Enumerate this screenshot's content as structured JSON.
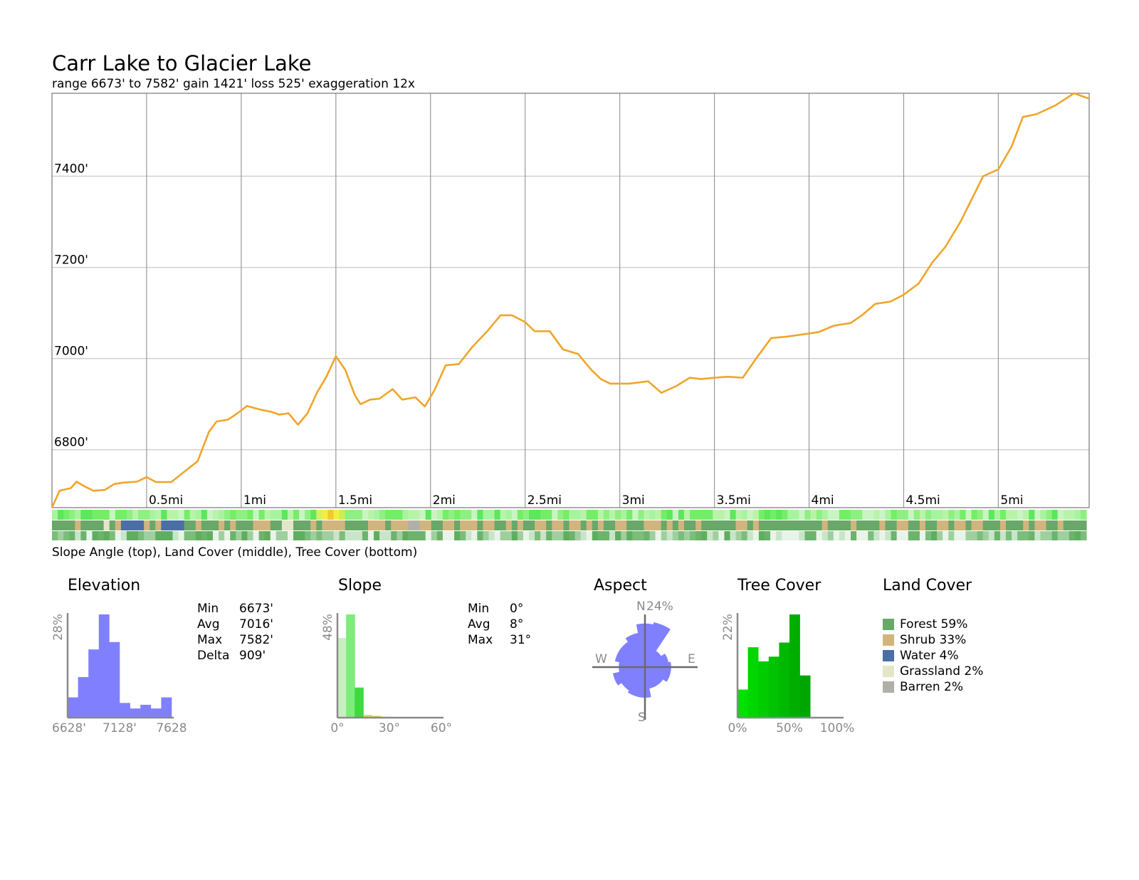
{
  "title": "Carr Lake to Glacier Lake",
  "subtitle": "range 6673' to 7582'  gain 1421'  loss 525'  exaggeration 12x",
  "strip_caption": "Slope Angle (top), Land Cover (middle), Tree Cover (bottom)",
  "colors": {
    "profile": "#f0a52a",
    "grid": "#d0d0d0",
    "vgrid": "#999999",
    "elevation_hist": "#8080ff",
    "aspect_rose": "#8080ff",
    "axis_label": "#8a8a8a"
  },
  "chart_data": [
    {
      "name": "elevation-profile",
      "type": "line",
      "x_unit": "mi",
      "y_unit": "ft",
      "xlim": [
        0,
        5.48
      ],
      "ylim": [
        6673,
        7582
      ],
      "y_ticks": [
        6800,
        7000,
        7200,
        7400
      ],
      "y_tick_labels": [
        "6800'",
        "7000'",
        "7200'",
        "7400'"
      ],
      "x_ticks": [
        0.5,
        1,
        1.5,
        2,
        2.5,
        3,
        3.5,
        4,
        4.5,
        5
      ],
      "x_tick_labels": [
        "0.5mi",
        "1mi",
        "1.5mi",
        "2mi",
        "2.5mi",
        "3mi",
        "3.5mi",
        "4mi",
        "4.5mi",
        "5mi"
      ],
      "grid": true,
      "points": [
        [
          0,
          6673
        ],
        [
          0.04,
          6710
        ],
        [
          0.1,
          6716
        ],
        [
          0.13,
          6730
        ],
        [
          0.17,
          6720
        ],
        [
          0.22,
          6710
        ],
        [
          0.28,
          6712
        ],
        [
          0.33,
          6725
        ],
        [
          0.38,
          6728
        ],
        [
          0.45,
          6730
        ],
        [
          0.5,
          6740
        ],
        [
          0.55,
          6729
        ],
        [
          0.63,
          6729
        ],
        [
          0.7,
          6752
        ],
        [
          0.77,
          6775
        ],
        [
          0.83,
          6840
        ],
        [
          0.87,
          6862
        ],
        [
          0.93,
          6866
        ],
        [
          0.98,
          6880
        ],
        [
          1.03,
          6896
        ],
        [
          1.1,
          6888
        ],
        [
          1.16,
          6883
        ],
        [
          1.2,
          6877
        ],
        [
          1.25,
          6880
        ],
        [
          1.3,
          6855
        ],
        [
          1.35,
          6880
        ],
        [
          1.4,
          6925
        ],
        [
          1.45,
          6960
        ],
        [
          1.5,
          7005
        ],
        [
          1.55,
          6975
        ],
        [
          1.6,
          6920
        ],
        [
          1.63,
          6900
        ],
        [
          1.68,
          6910
        ],
        [
          1.73,
          6912
        ],
        [
          1.8,
          6933
        ],
        [
          1.85,
          6910
        ],
        [
          1.92,
          6915
        ],
        [
          1.97,
          6895
        ],
        [
          2.02,
          6930
        ],
        [
          2.08,
          6985
        ],
        [
          2.15,
          6988
        ],
        [
          2.22,
          7025
        ],
        [
          2.3,
          7060
        ],
        [
          2.37,
          7095
        ],
        [
          2.43,
          7095
        ],
        [
          2.5,
          7080
        ],
        [
          2.55,
          7060
        ],
        [
          2.63,
          7060
        ],
        [
          2.7,
          7020
        ],
        [
          2.78,
          7010
        ],
        [
          2.85,
          6975
        ],
        [
          2.9,
          6955
        ],
        [
          2.95,
          6945
        ],
        [
          3.05,
          6945
        ],
        [
          3.15,
          6950
        ],
        [
          3.22,
          6925
        ],
        [
          3.3,
          6940
        ],
        [
          3.37,
          6958
        ],
        [
          3.43,
          6955
        ],
        [
          3.5,
          6958
        ],
        [
          3.57,
          6960
        ],
        [
          3.65,
          6958
        ],
        [
          3.72,
          7000
        ],
        [
          3.8,
          7045
        ],
        [
          3.88,
          7048
        ],
        [
          3.95,
          7052
        ],
        [
          4.05,
          7058
        ],
        [
          4.13,
          7072
        ],
        [
          4.22,
          7078
        ],
        [
          4.28,
          7095
        ],
        [
          4.35,
          7120
        ],
        [
          4.43,
          7125
        ],
        [
          4.5,
          7140
        ],
        [
          4.58,
          7165
        ],
        [
          4.65,
          7210
        ],
        [
          4.72,
          7245
        ],
        [
          4.8,
          7300
        ],
        [
          4.86,
          7350
        ],
        [
          4.92,
          7400
        ],
        [
          5.0,
          7415
        ],
        [
          5.07,
          7465
        ],
        [
          5.13,
          7530
        ],
        [
          5.2,
          7536
        ],
        [
          5.3,
          7555
        ],
        [
          5.4,
          7582
        ],
        [
          5.48,
          7570
        ]
      ]
    },
    {
      "name": "elevation-histogram",
      "type": "bar",
      "title": "Elevation",
      "x_unit": "ft",
      "bin_edges": [
        6628,
        6728,
        6828,
        6928,
        7028,
        7128,
        7228,
        7328,
        7428,
        7528,
        7628
      ],
      "values": [
        5.5,
        11,
        18.5,
        28,
        20.5,
        4,
        2.5,
        3.5,
        2.5,
        5.5
      ],
      "ylim": [
        0,
        28
      ],
      "y_label": "28%",
      "x_tick_labels": [
        "6628'",
        "7128'",
        "7628"
      ],
      "stats": [
        {
          "label": "Min",
          "value": "6673'"
        },
        {
          "label": "Avg",
          "value": "7016'"
        },
        {
          "label": "Max",
          "value": "7582'"
        },
        {
          "label": "Delta",
          "value": "909'"
        }
      ]
    },
    {
      "name": "slope-histogram",
      "type": "bar",
      "title": "Slope",
      "x_unit": "degrees",
      "bin_edges": [
        0,
        5,
        10,
        15,
        20,
        25,
        30
      ],
      "values": [
        37,
        48,
        14,
        1.3,
        0.8,
        0.4
      ],
      "colors": [
        "#c6f0c0",
        "#7ded7a",
        "#3ed93e",
        "#c8e44a",
        "#e8c830",
        "#f0a030"
      ],
      "ylim": [
        0,
        48
      ],
      "y_label": "48%",
      "x_tick_labels": [
        "0°",
        "30°",
        "60°"
      ],
      "stats": [
        {
          "label": "Min",
          "value": "0°"
        },
        {
          "label": "Avg",
          "value": "8°"
        },
        {
          "label": "Max",
          "value": "31°"
        }
      ]
    },
    {
      "name": "aspect-rose",
      "type": "rose",
      "title": "Aspect",
      "max_label": "24%",
      "max_percent": 24,
      "direction_labels": [
        "N",
        "E",
        "S",
        "W"
      ],
      "sectors_deg": [
        0,
        22.5,
        45,
        67.5,
        90,
        112.5,
        135,
        157.5,
        180,
        202.5,
        225,
        247.5,
        270,
        292.5,
        315,
        337.5
      ],
      "values": [
        20,
        21,
        9,
        11,
        12,
        12,
        10,
        10,
        14,
        14,
        13,
        15,
        12,
        14,
        14,
        16
      ]
    },
    {
      "name": "tree-cover-histogram",
      "type": "bar",
      "title": "Tree Cover",
      "x_unit": "percent",
      "bin_edges": [
        0,
        10,
        20,
        30,
        40,
        50,
        60,
        70
      ],
      "values": [
        6,
        15,
        12,
        13,
        16,
        22,
        9
      ],
      "colors": [
        "#00e100",
        "#00d600",
        "#00cc00",
        "#00c200",
        "#00b800",
        "#00ae00",
        "#00a600"
      ],
      "ylim": [
        0,
        22
      ],
      "y_label": "22%",
      "x_tick_labels": [
        "0%",
        "50%",
        "100%"
      ]
    },
    {
      "name": "land-cover-legend",
      "type": "legend",
      "title": "Land Cover",
      "entries": [
        {
          "label": "Forest 59%",
          "color": "#68a868"
        },
        {
          "label": "Shrub 33%",
          "color": "#d2b57e"
        },
        {
          "label": "Water 4%",
          "color": "#4a6fa6"
        },
        {
          "label": "Grassland 2%",
          "color": "#e5e5c8"
        },
        {
          "label": "Barren 2%",
          "color": "#b0b0a8"
        }
      ]
    }
  ]
}
